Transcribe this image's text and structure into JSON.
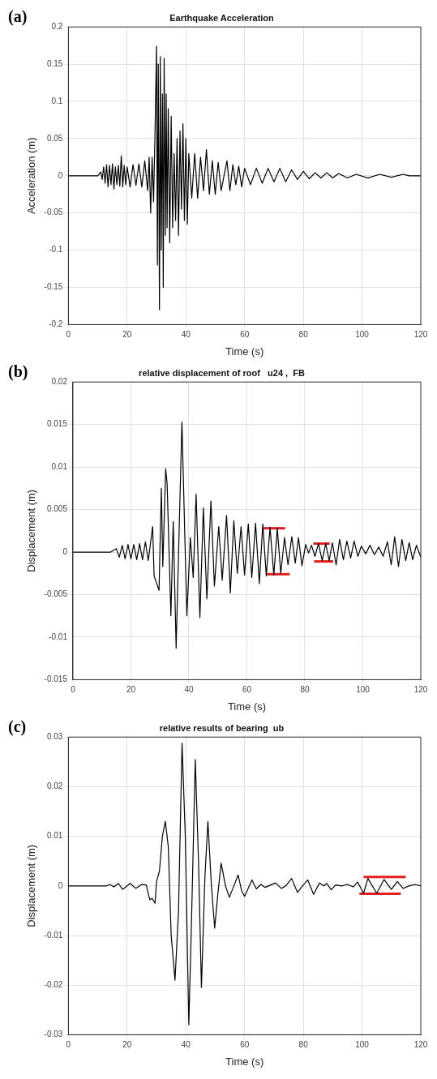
{
  "chart_data": [
    {
      "type": "line",
      "title": "Earthquake Acceleration",
      "xlabel": "Time (s)",
      "ylabel": "Acceleration (m)",
      "annotations": [
        "(a)"
      ],
      "xlim": [
        0,
        120
      ],
      "xticks": [
        0,
        20,
        40,
        60,
        80,
        100,
        120
      ],
      "ylim": [
        -0.2,
        0.2
      ],
      "yticks": [
        -0.2,
        -0.15,
        -0.1,
        -0.05,
        0,
        0.05,
        0.1,
        0.15,
        0.2
      ],
      "grid": true,
      "legend": false,
      "marker": "none",
      "line_style": "solid",
      "series": [
        {
          "color": "#000000",
          "x": [
            0,
            10,
            11,
            11.5,
            12,
            12.5,
            13,
            13.5,
            14,
            14.5,
            15,
            15.5,
            16,
            16.5,
            17,
            17.5,
            18,
            18.5,
            19,
            19.5,
            20,
            21,
            22,
            23,
            24,
            25,
            26,
            27,
            27.5,
            28,
            28.5,
            29,
            29.5,
            30,
            30.3,
            30.6,
            31,
            31.3,
            31.6,
            32,
            32.3,
            32.6,
            33,
            33.3,
            33.6,
            34,
            34.5,
            35,
            35.5,
            36,
            36.5,
            37,
            37.5,
            38,
            38.5,
            39,
            39.5,
            40,
            40.5,
            41,
            42,
            43,
            44,
            45,
            46,
            47,
            48,
            49,
            50,
            51,
            52,
            54,
            55,
            56,
            57,
            58,
            59,
            60,
            62,
            64,
            66,
            68,
            70,
            72,
            74,
            76,
            78,
            80,
            82,
            84,
            86,
            88,
            90,
            92,
            95,
            98,
            102,
            106,
            110,
            114,
            116,
            120
          ],
          "values": [
            0,
            0,
            0.005,
            -0.005,
            0.012,
            -0.01,
            0.015,
            -0.015,
            0.014,
            -0.012,
            0.016,
            -0.018,
            0.012,
            -0.012,
            0.014,
            -0.014,
            0.027,
            -0.015,
            0.014,
            -0.012,
            0.012,
            -0.015,
            0.015,
            -0.013,
            0.016,
            -0.015,
            0.02,
            -0.02,
            0.025,
            -0.05,
            0.025,
            -0.035,
            0.06,
            0.174,
            -0.12,
            0.15,
            -0.18,
            0.16,
            -0.1,
            0.11,
            -0.15,
            0.158,
            -0.08,
            0.11,
            -0.07,
            0.09,
            -0.09,
            0.08,
            -0.07,
            0.03,
            -0.06,
            0.05,
            -0.08,
            0.06,
            -0.045,
            0.07,
            -0.06,
            0.05,
            -0.065,
            0.03,
            -0.03,
            0.03,
            -0.03,
            0.025,
            -0.02,
            0.035,
            -0.025,
            0.02,
            -0.025,
            0.018,
            -0.02,
            0.02,
            -0.02,
            0.015,
            -0.012,
            0.013,
            -0.015,
            0.01,
            -0.012,
            0.01,
            -0.01,
            0.01,
            -0.008,
            0.01,
            -0.008,
            0.008,
            -0.005,
            0.006,
            -0.004,
            0.004,
            -0.003,
            0.004,
            -0.003,
            0.003,
            -0.003,
            0.002,
            -0.003,
            0.002,
            -0.002,
            0.002,
            0,
            0
          ]
        }
      ]
    },
    {
      "type": "line",
      "title": "relative displacement of roof   u24 ,  FB",
      "xlabel": "Time (s)",
      "ylabel": "Displacement (m)",
      "annotations": [
        "(b)"
      ],
      "xlim": [
        0,
        120
      ],
      "xticks": [
        0,
        20,
        40,
        60,
        80,
        100,
        120
      ],
      "ylim": [
        -0.015,
        0.02
      ],
      "yticks": [
        -0.015,
        -0.01,
        -0.005,
        0,
        0.005,
        0.01,
        0.015,
        0.02
      ],
      "grid": true,
      "legend": false,
      "marker": "none",
      "line_style": "solid",
      "series": [
        {
          "color": "#000000",
          "x": [
            0,
            13,
            15,
            16,
            17,
            18,
            19,
            20,
            21,
            22,
            23,
            24,
            25,
            26,
            27.5,
            28,
            29.7,
            30.5,
            31,
            32,
            32.5,
            33.8,
            34.6,
            35.6,
            37.6,
            39.3,
            40.5,
            41.5,
            42.5,
            43.8,
            45,
            46.2,
            47.6,
            48.8,
            50.3,
            51.5,
            53,
            54.3,
            55.5,
            56.7,
            58,
            59.2,
            60.5,
            61.7,
            63,
            64.3,
            65.5,
            66.7,
            68,
            69.3,
            70.5,
            71.7,
            73,
            74.2,
            75.5,
            76.7,
            77.8,
            79,
            80.3,
            81.3,
            82.3,
            83.5,
            84.7,
            86,
            87.2,
            88.4,
            89.5,
            90.8,
            92,
            93.3,
            94.5,
            95.8,
            97,
            98.3,
            99.5,
            101,
            102.5,
            104,
            105.5,
            107,
            108.5,
            109.8,
            111,
            112.3,
            113.5,
            114.8,
            116,
            117.2,
            118.5,
            120
          ],
          "values": [
            0,
            0,
            0.0004,
            -0.0006,
            0.0008,
            -0.0008,
            0.0009,
            -0.0008,
            0.0009,
            -0.0009,
            0.001,
            -0.0009,
            0.0012,
            -0.001,
            0.003,
            -0.0028,
            -0.0045,
            0.0075,
            -0.0017,
            0.0098,
            0.008,
            -0.0075,
            0.0036,
            -0.0113,
            0.0153,
            -0.0075,
            0.0017,
            -0.003,
            0.0068,
            -0.0077,
            0.0052,
            -0.0055,
            0.006,
            -0.004,
            0.003,
            -0.0033,
            0.0043,
            -0.0048,
            0.0037,
            -0.0025,
            0.003,
            -0.0027,
            0.0033,
            -0.003,
            0.0034,
            -0.0037,
            0.0033,
            -0.0028,
            0.0029,
            -0.0027,
            0.0028,
            -0.0025,
            0.0017,
            -0.0015,
            0.0018,
            -0.0013,
            0.0017,
            -0.0016,
            0.0009,
            -0.0001,
            0.0008,
            -0.0005,
            0.001,
            -0.001,
            0.001,
            -0.001,
            0.0011,
            -0.0015,
            0.0015,
            -0.0009,
            0.0013,
            -0.0007,
            0.0013,
            -0.0005,
            0.0007,
            -0.0002,
            0.0008,
            -0.0003,
            0.0006,
            -0.0005,
            0.0012,
            -0.0015,
            0.0018,
            -0.0017,
            0.0015,
            -0.001,
            0.0011,
            -0.0009,
            0.0008,
            -0.0006
          ]
        },
        {
          "color": "#e02020",
          "x": [
            65.5,
            73.2
          ],
          "values": [
            0.0028,
            0.0028
          ]
        },
        {
          "color": "#e02020",
          "x": [
            66.9,
            74.8
          ],
          "values": [
            -0.0026,
            -0.0026
          ]
        },
        {
          "color": "#e02020",
          "x": [
            82.9,
            88.6
          ],
          "values": [
            0.001,
            0.001
          ]
        },
        {
          "color": "#e02020",
          "x": [
            83.2,
            89.8
          ],
          "values": [
            -0.0011,
            -0.0011
          ]
        }
      ]
    },
    {
      "type": "line",
      "title": "relative results of bearing  ub",
      "xlabel": "Time (s)",
      "ylabel": "Displacement (m)",
      "annotations": [
        "(c)"
      ],
      "xlim": [
        0,
        120
      ],
      "xticks": [
        0,
        20,
        40,
        60,
        80,
        100,
        120
      ],
      "ylim": [
        -0.03,
        0.03
      ],
      "yticks": [
        -0.03,
        -0.02,
        -0.01,
        0,
        0.01,
        0.02,
        0.03
      ],
      "grid": true,
      "legend": false,
      "marker": "none",
      "line_style": "solid",
      "series": [
        {
          "color": "#000000",
          "x": [
            0,
            13,
            14,
            15.5,
            17,
            18.5,
            21,
            23,
            25,
            26.5,
            27.7,
            28.5,
            29.5,
            30,
            31,
            32,
            33,
            34,
            35,
            36.3,
            37.5,
            38.7,
            39.8,
            41,
            42,
            43.2,
            44.3,
            45.3,
            46.5,
            47.5,
            48.7,
            49.8,
            51,
            52,
            53.5,
            54.8,
            56,
            57.8,
            59,
            60,
            62.5,
            64,
            65.5,
            67,
            70.5,
            72.5,
            74,
            76,
            78,
            80,
            81.5,
            83.5,
            85.5,
            87,
            88,
            89.5,
            91,
            93,
            95,
            97,
            98.5,
            100.5,
            102,
            105,
            107.5,
            110,
            112,
            114,
            116,
            118,
            120
          ],
          "values": [
            0,
            0,
            0.0003,
            -0.0002,
            0.0005,
            -0.0007,
            0.0005,
            -0.0005,
            0.0003,
            0.0002,
            -0.0028,
            -0.0025,
            -0.0035,
            0.0008,
            0.003,
            0.01,
            0.013,
            0.008,
            -0.01,
            -0.019,
            -0.005,
            0.0288,
            0.01,
            -0.028,
            -0.005,
            0.0255,
            0.005,
            -0.0205,
            0.002,
            0.013,
            0,
            -0.0085,
            -0.001,
            0.0046,
            0,
            -0.0023,
            -0.0005,
            0.0022,
            -0.001,
            -0.0021,
            0.0012,
            -0.0006,
            0.0003,
            -0.0003,
            0.0006,
            -0.0005,
            0,
            0.0015,
            -0.0013,
            0.0002,
            0.0012,
            -0.0017,
            0.0006,
            0,
            0.0005,
            -0.0008,
            0.0002,
            0,
            0.0003,
            -0.0002,
            0.0008,
            -0.0015,
            0.0015,
            -0.0015,
            0.0013,
            -0.0007,
            0.0009,
            -0.0005,
            0,
            0.0003,
            0
          ]
        },
        {
          "color": "#e02020",
          "x": [
            100.5,
            114.9
          ],
          "values": [
            0.0018,
            0.0018
          ]
        },
        {
          "color": "#e02020",
          "x": [
            99.1,
            113.2
          ],
          "values": [
            -0.0016,
            -0.0016
          ]
        }
      ]
    }
  ]
}
